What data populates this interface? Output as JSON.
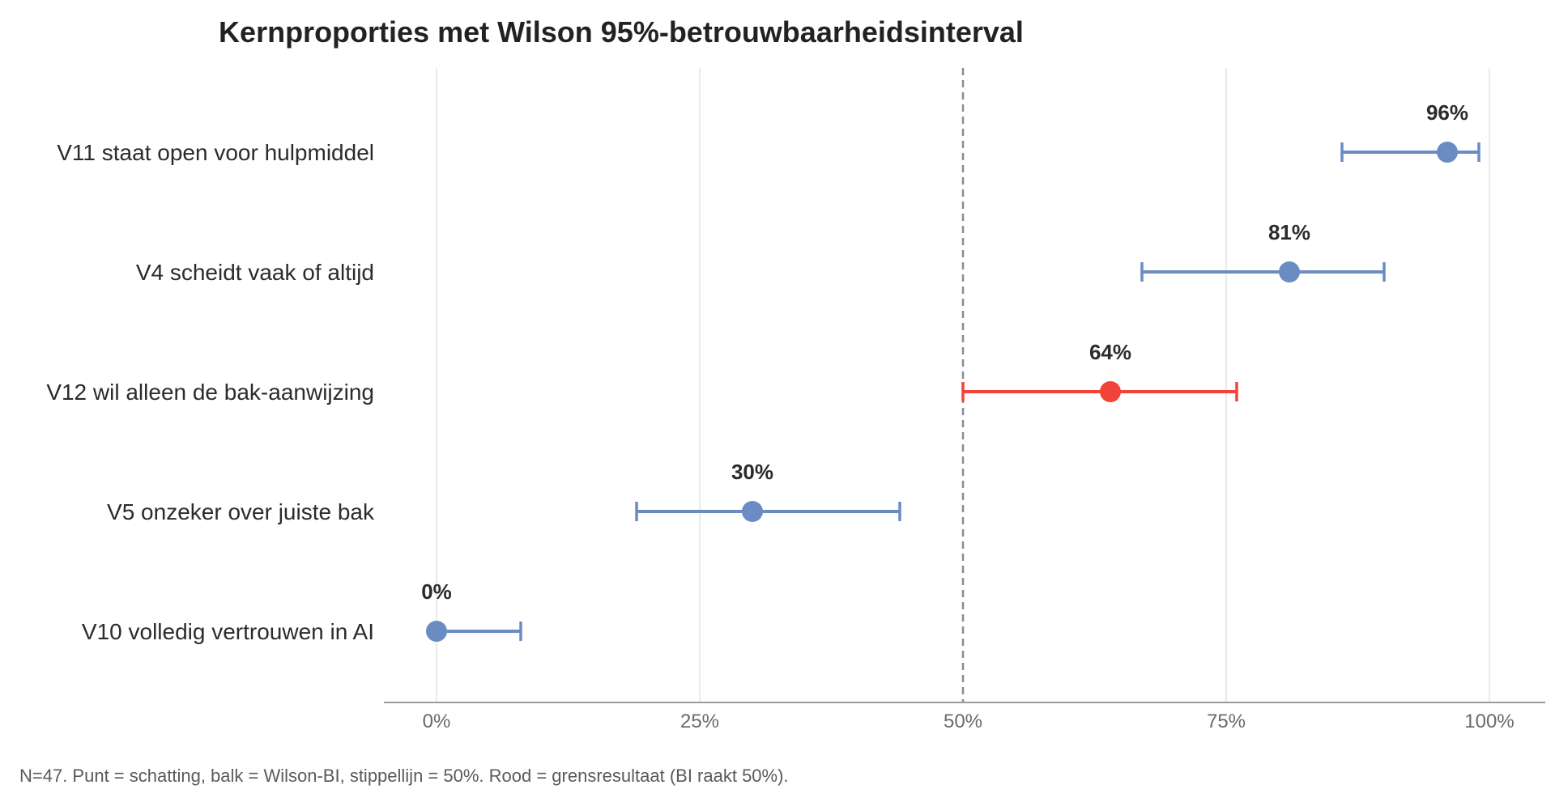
{
  "chart_data": {
    "type": "scatter",
    "title": "Kernproporties met Wilson 95%-betrouwbaarheidsinterval",
    "xlabel": "",
    "ylabel": "",
    "xlim": [
      -0.05,
      1.05
    ],
    "x_ticks": [
      0,
      0.25,
      0.5,
      0.75,
      1.0
    ],
    "x_tick_labels": [
      "0%",
      "25%",
      "50%",
      "75%",
      "100%"
    ],
    "reference_line": {
      "x": 0.5,
      "style": "dashed",
      "color": "#8c8c8c"
    },
    "grid": "vertical",
    "colors": {
      "normal": "#6a8cc2",
      "highlight": "#f2433b",
      "grid": "#e3e3e3",
      "axis": "#9a9a9a"
    },
    "categories": [
      "V11 staat open voor hulpmiddel",
      "V4 scheidt vaak of altijd",
      "V12 wil alleen de bak-aanwijzing",
      "V5 onzeker over juiste bak",
      "V10 volledig vertrouwen in AI"
    ],
    "points": [
      {
        "category": "V11 staat open voor hulpmiddel",
        "estimate": 0.96,
        "ci_low": 0.86,
        "ci_high": 0.99,
        "label": "96%",
        "highlight": false
      },
      {
        "category": "V4 scheidt vaak of altijd",
        "estimate": 0.81,
        "ci_low": 0.67,
        "ci_high": 0.9,
        "label": "81%",
        "highlight": false
      },
      {
        "category": "V12 wil alleen de bak-aanwijzing",
        "estimate": 0.64,
        "ci_low": 0.5,
        "ci_high": 0.76,
        "label": "64%",
        "highlight": true
      },
      {
        "category": "V5 onzeker over juiste bak",
        "estimate": 0.3,
        "ci_low": 0.19,
        "ci_high": 0.44,
        "label": "30%",
        "highlight": false
      },
      {
        "category": "V10 volledig vertrouwen in AI",
        "estimate": 0.0,
        "ci_low": 0.0,
        "ci_high": 0.08,
        "label": "0%",
        "highlight": false
      }
    ],
    "footnote": "N=47. Punt = schatting, balk = Wilson-BI, stippellijn = 50%. Rood = grensresultaat (BI raakt 50%)."
  }
}
